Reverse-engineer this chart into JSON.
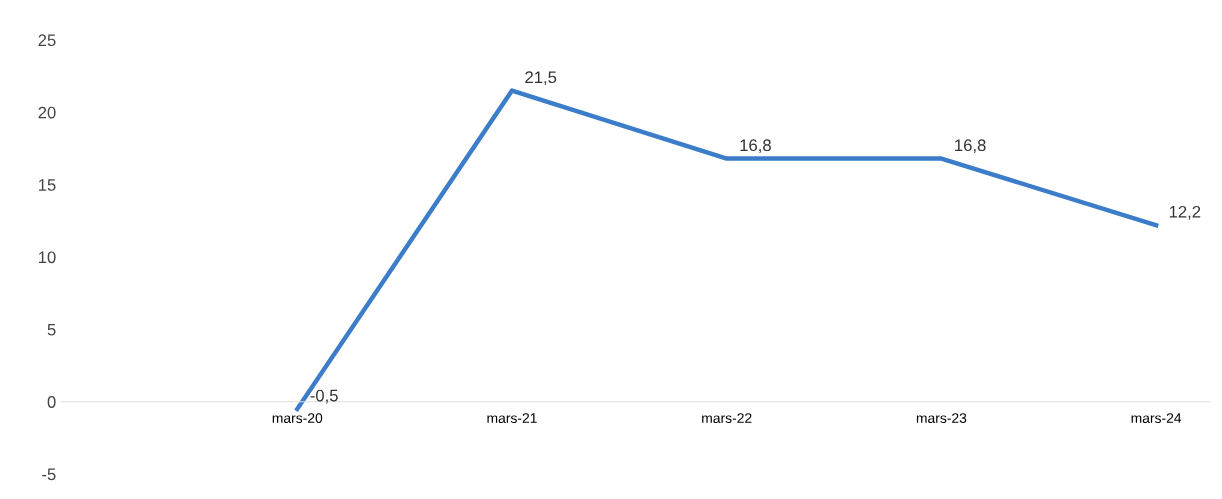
{
  "chart_data": {
    "type": "line",
    "categories": [
      null,
      "mars-20",
      "mars-21",
      "mars-22",
      "mars-23",
      "mars-24"
    ],
    "series": [
      {
        "color": "#3b7dc8",
        "values": [
          null,
          -0.5,
          21.5,
          16.8,
          16.8,
          12.2
        ],
        "value_labels": [
          null,
          "-0,5",
          "21,5",
          "16,8",
          "16,8",
          "12,2"
        ]
      }
    ],
    "ylim": [
      -5,
      25
    ],
    "yticks": [
      -5,
      0,
      5,
      10,
      15,
      20,
      25
    ],
    "grid": false,
    "legend": false,
    "marker": "none",
    "line_style": "solid"
  }
}
